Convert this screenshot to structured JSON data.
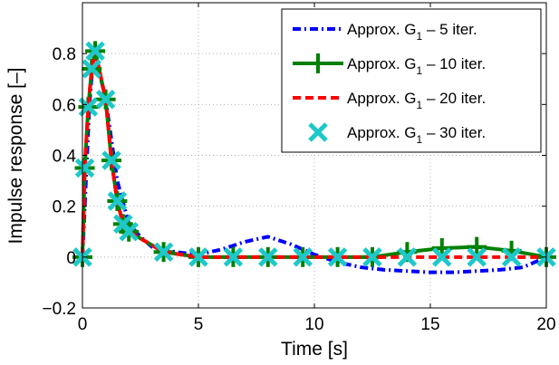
{
  "chart_data": {
    "type": "line",
    "title": "",
    "xlabel": "Time [s]",
    "ylabel": "Impulse response [–]",
    "xlim": [
      0,
      20
    ],
    "ylim": [
      -0.2,
      1.0
    ],
    "xticks": [
      0,
      5,
      10,
      15,
      20
    ],
    "yticks": [
      -0.2,
      0,
      0.2,
      0.4,
      0.6,
      0.8
    ],
    "xtick_labels": [
      "0",
      "5",
      "10",
      "15",
      "20"
    ],
    "ytick_labels": [
      "−0.2",
      "0",
      "0.2",
      "0.4",
      "0.6",
      "0.8"
    ],
    "grid": true,
    "legend_position": "top-right",
    "series": [
      {
        "name": "Approx. G₁ – 5 iter.",
        "legend_prefix": "Approx. G",
        "legend_sub": "1",
        "legend_suffix": " – 5 iter.",
        "color": "#0000ff",
        "line_style": "dash-dot",
        "marker": "none",
        "x": [
          0,
          0.3,
          0.5,
          1.0,
          1.5,
          2.0,
          2.5,
          3.0,
          3.5,
          4,
          5,
          6,
          7,
          8,
          9,
          10,
          11,
          12,
          13,
          14,
          15,
          16,
          17,
          18,
          19,
          20
        ],
        "y": [
          0,
          0.6,
          0.82,
          0.62,
          0.3,
          0.13,
          0.08,
          0.04,
          0.03,
          0.02,
          0.01,
          0.03,
          0.06,
          0.08,
          0.05,
          0.01,
          -0.02,
          -0.04,
          -0.05,
          -0.055,
          -0.06,
          -0.06,
          -0.055,
          -0.05,
          -0.04,
          0
        ]
      },
      {
        "name": "Approx. G₁ – 10 iter.",
        "legend_prefix": "Approx. G",
        "legend_sub": "1",
        "legend_suffix": " – 10 iter.",
        "color": "#008000",
        "line_style": "solid",
        "marker": "plus",
        "x": [
          0,
          0.1,
          0.25,
          0.4,
          0.55,
          1.0,
          1.25,
          1.5,
          1.75,
          2.0,
          3.5,
          5,
          6.5,
          8,
          9.5,
          11,
          12.5,
          14,
          15.5,
          17,
          18.5,
          20
        ],
        "y": [
          0,
          0.35,
          0.59,
          0.74,
          0.81,
          0.62,
          0.38,
          0.22,
          0.13,
          0.1,
          0.02,
          0.0,
          0.0,
          0.0,
          0.0,
          0.0,
          0.0,
          0.02,
          0.035,
          0.04,
          0.025,
          0.0
        ]
      },
      {
        "name": "Approx. G₁ – 20 iter.",
        "legend_prefix": "Approx. G",
        "legend_sub": "1",
        "legend_suffix": " – 20 iter.",
        "color": "#ff0000",
        "line_style": "dashed",
        "marker": "none",
        "x": [
          0,
          0.1,
          0.25,
          0.4,
          0.55,
          1.0,
          1.25,
          1.5,
          1.75,
          2.0,
          3.5,
          5,
          6.5,
          8,
          9.5,
          11,
          12.5,
          14,
          15.5,
          17,
          18.5,
          20
        ],
        "y": [
          0,
          0.35,
          0.59,
          0.74,
          0.81,
          0.62,
          0.38,
          0.22,
          0.13,
          0.1,
          0.02,
          0.0,
          0.0,
          0.0,
          0.0,
          0.0,
          0.0,
          0.0,
          0.0,
          0.0,
          0.0,
          0.0
        ]
      },
      {
        "name": "Approx. G₁ – 30 iter.",
        "legend_prefix": "Approx. G",
        "legend_sub": "1",
        "legend_suffix": " – 30 iter.",
        "color": "#1ec8c8",
        "line_style": "none",
        "marker": "x",
        "x": [
          0,
          0.1,
          0.25,
          0.4,
          0.55,
          1.0,
          1.25,
          1.5,
          1.75,
          2.0,
          3.5,
          5,
          6.5,
          8,
          9.5,
          11,
          12.5,
          14,
          15.5,
          17,
          18.5,
          20
        ],
        "y": [
          0,
          0.35,
          0.59,
          0.74,
          0.81,
          0.62,
          0.38,
          0.22,
          0.13,
          0.1,
          0.02,
          0.0,
          0.0,
          0.0,
          0.0,
          0.0,
          0.0,
          0.0,
          0.0,
          0.0,
          0.0,
          0.0
        ]
      }
    ]
  }
}
